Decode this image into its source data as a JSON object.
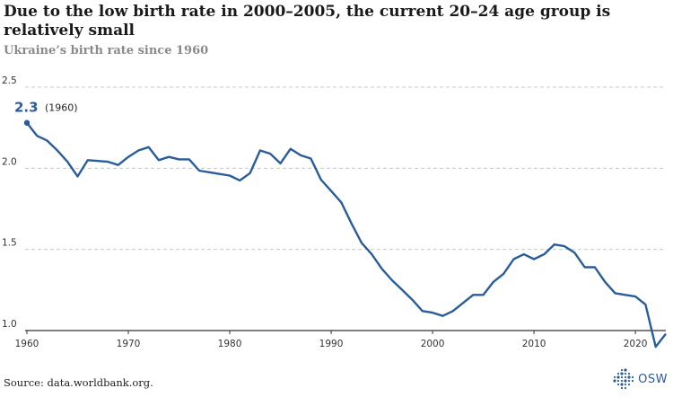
{
  "title": "Due to the low birth rate in 2000–2005, the current 20–24 age group is relatively small",
  "subtitle": "Ukraine’s birth rate since 1960",
  "source": "Source: data.worldbank.org.",
  "logo_text": "OSW",
  "colors": {
    "line": "#2a5c9a",
    "grid": "#c8c8c8",
    "axis": "#333333",
    "subtitle": "#8a8a8a"
  },
  "chart_data": {
    "type": "line",
    "xlim": [
      1960,
      2023
    ],
    "ylim": [
      1.0,
      2.5
    ],
    "yticks": [
      "1.0",
      "1.5",
      "2.0",
      "2.5"
    ],
    "xticks": [
      "1960",
      "1970",
      "1980",
      "1990",
      "2000",
      "2010",
      "2020"
    ],
    "grid": true,
    "x": [
      1960,
      1961,
      1962,
      1963,
      1964,
      1965,
      1966,
      1967,
      1968,
      1969,
      1970,
      1971,
      1972,
      1973,
      1974,
      1975,
      1976,
      1977,
      1978,
      1979,
      1980,
      1981,
      1982,
      1983,
      1984,
      1985,
      1986,
      1987,
      1988,
      1989,
      1990,
      1991,
      1992,
      1993,
      1994,
      1995,
      1996,
      1997,
      1998,
      1999,
      2000,
      2001,
      2002,
      2003,
      2004,
      2005,
      2006,
      2007,
      2008,
      2009,
      2010,
      2011,
      2012,
      2013,
      2014,
      2015,
      2016,
      2017,
      2018,
      2019,
      2020,
      2021,
      2022,
      2023
    ],
    "values": [
      2.28,
      2.2,
      2.17,
      2.11,
      2.04,
      1.95,
      2.05,
      2.045,
      2.04,
      2.02,
      2.07,
      2.11,
      2.13,
      2.05,
      2.07,
      2.055,
      2.055,
      1.985,
      1.975,
      1.965,
      1.955,
      1.925,
      1.97,
      2.11,
      2.09,
      2.03,
      2.12,
      2.08,
      2.06,
      1.93,
      1.86,
      1.79,
      1.66,
      1.54,
      1.47,
      1.38,
      1.31,
      1.25,
      1.19,
      1.12,
      1.11,
      1.09,
      1.12,
      1.17,
      1.22,
      1.22,
      1.3,
      1.35,
      1.44,
      1.47,
      1.44,
      1.47,
      1.53,
      1.52,
      1.48,
      1.39,
      1.39,
      1.3,
      1.23,
      1.22,
      1.21,
      1.16,
      0.9,
      0.98
    ],
    "annotation": {
      "value": "2.3",
      "note": "(1960)"
    }
  }
}
